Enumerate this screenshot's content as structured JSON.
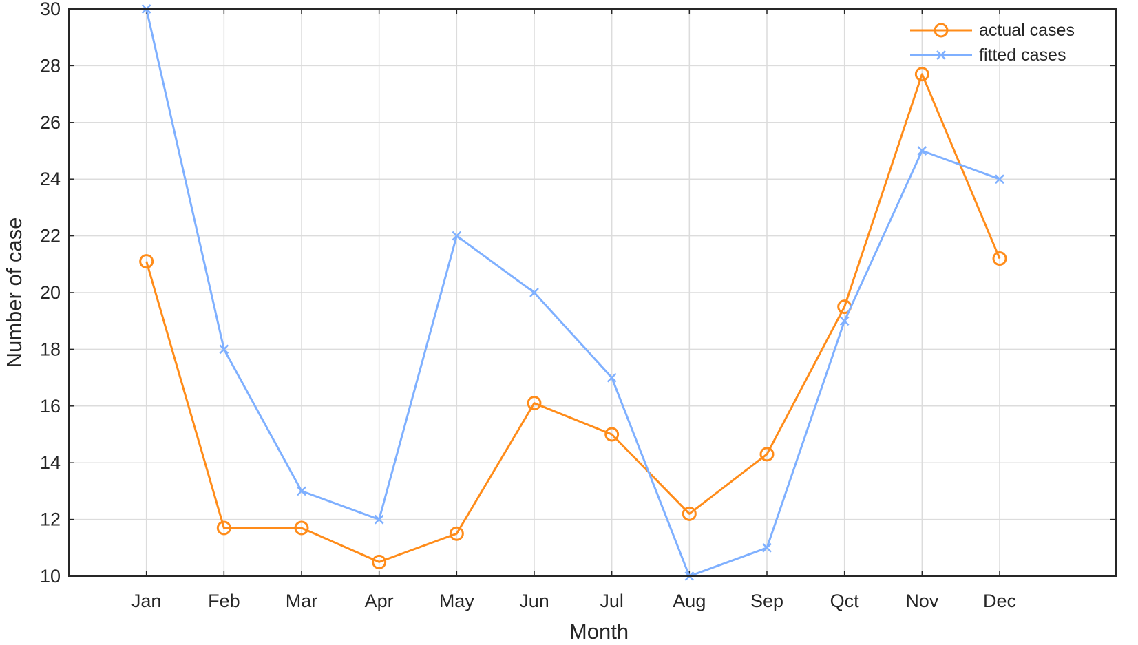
{
  "chart_data": {
    "type": "line",
    "categories": [
      "Jan",
      "Feb",
      "Mar",
      "Apr",
      "May",
      "Jun",
      "Jul",
      "Aug",
      "Sep",
      "Qct",
      "Nov",
      "Dec"
    ],
    "series": [
      {
        "name": "actual cases",
        "color": "#ff8c1a",
        "marker": "circle",
        "values": [
          21.1,
          11.7,
          11.7,
          10.5,
          11.5,
          16.1,
          15.0,
          12.2,
          14.3,
          19.5,
          27.7,
          21.2
        ]
      },
      {
        "name": "fitted cases",
        "color": "#7fb0ff",
        "marker": "x",
        "values": [
          30,
          18,
          13,
          12,
          22,
          20,
          17,
          10,
          11,
          19,
          25,
          24
        ]
      }
    ],
    "xlabel": "Month",
    "ylabel": "Number of case",
    "ylim": [
      10,
      30
    ],
    "yticks": [
      "10",
      "12",
      "14",
      "16",
      "18",
      "20",
      "22",
      "24",
      "26",
      "28",
      "30"
    ],
    "grid": true,
    "legend_position": "top-right"
  }
}
